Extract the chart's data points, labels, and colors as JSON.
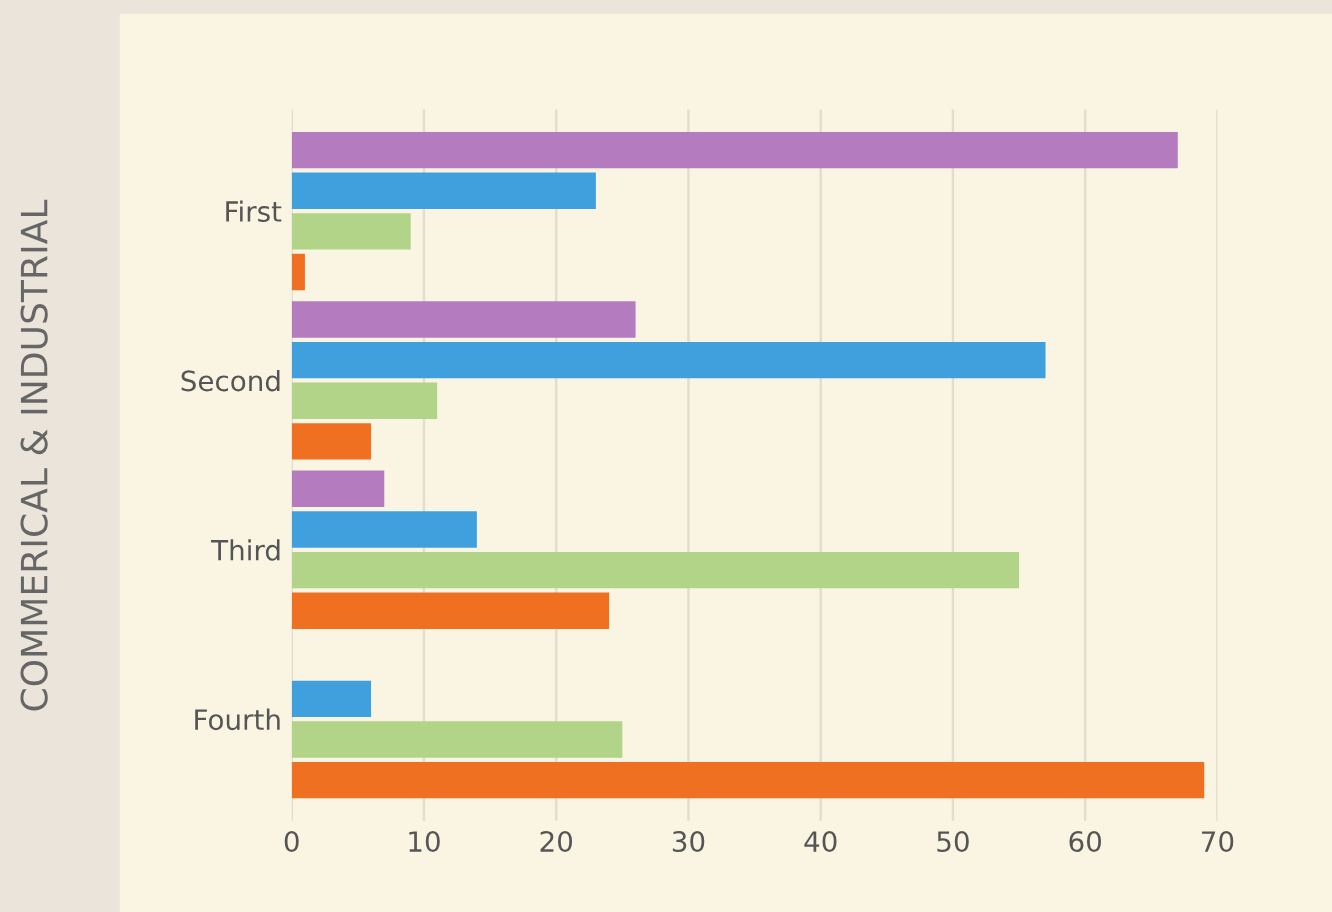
{
  "chart_data": {
    "type": "bar",
    "orientation": "horizontal",
    "ylabel": "COMMERICAL & INDUSTRIAL",
    "categories": [
      "First",
      "Second",
      "Third",
      "Fourth"
    ],
    "series": [
      {
        "color": "#b57bbf",
        "values": [
          67,
          26,
          7,
          null
        ]
      },
      {
        "color": "#3fa0dd",
        "values": [
          23,
          57,
          14,
          6
        ]
      },
      {
        "color": "#b2d488",
        "values": [
          9,
          11,
          55,
          25
        ]
      },
      {
        "color": "#f07021",
        "values": [
          1,
          6,
          24,
          69
        ]
      }
    ],
    "xlim": [
      0,
      70
    ],
    "xticks": [
      0,
      10,
      20,
      30,
      40,
      50,
      60,
      70
    ],
    "grid": "x"
  }
}
